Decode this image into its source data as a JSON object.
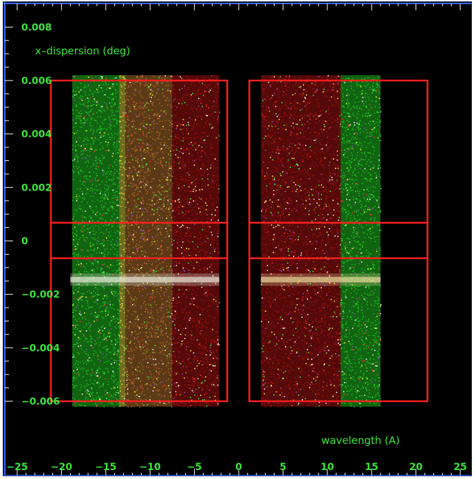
{
  "chart_data": {
    "type": "scatter",
    "ylabel": "x–dispersion (deg)",
    "xlabel": "wavelength (A)",
    "xlim": [
      -25,
      25
    ],
    "ylim": [
      -0.0062,
      0.0089
    ],
    "x_ticks": [
      {
        "value": -25,
        "label": "−25"
      },
      {
        "value": -20,
        "label": "−20"
      },
      {
        "value": -15,
        "label": "−15"
      },
      {
        "value": -10,
        "label": "−10"
      },
      {
        "value": -5,
        "label": "−5"
      },
      {
        "value": 0,
        "label": "0"
      },
      {
        "value": 5,
        "label": "5"
      },
      {
        "value": 10,
        "label": "10"
      },
      {
        "value": 15,
        "label": "15"
      },
      {
        "value": 20,
        "label": "20"
      },
      {
        "value": 25,
        "label": "25"
      }
    ],
    "y_ticks": [
      {
        "value": 0.008,
        "label": "0.008"
      },
      {
        "value": 0.006,
        "label": "0.006"
      },
      {
        "value": 0.004,
        "label": "0.004"
      },
      {
        "value": 0.002,
        "label": "0.002"
      },
      {
        "value": 0,
        "label": "0"
      },
      {
        "value": -0.002,
        "label": "−0.002"
      },
      {
        "value": -0.004,
        "label": "−0.004"
      },
      {
        "value": -0.006,
        "label": "−0.006"
      }
    ],
    "detector_boxes": [
      {
        "x": [
          -21.2,
          -1.3
        ],
        "y": [
          -0.006,
          0.006
        ]
      },
      {
        "x": [
          1.2,
          21.3
        ],
        "y": [
          -0.006,
          0.006
        ]
      }
    ],
    "horizontal_box_lines": [
      0.00068,
      -0.00065
    ],
    "scatter_bands": [
      {
        "x": [
          -18.8,
          -13.5
        ],
        "y": [
          -0.0062,
          0.0062
        ],
        "color": "#1fb81f"
      },
      {
        "x": [
          -13.5,
          -12.8
        ],
        "y": [
          -0.0062,
          0.0062
        ],
        "color": "#c6c63a"
      },
      {
        "x": [
          -12.8,
          -7.5
        ],
        "y": [
          -0.0062,
          0.0062
        ],
        "color": "#a86a2a"
      },
      {
        "x": [
          -7.5,
          -2.2
        ],
        "y": [
          -0.0062,
          0.0062
        ],
        "color": "#9a1010"
      },
      {
        "x": [
          2.5,
          11.5
        ],
        "y": [
          -0.0062,
          0.0062
        ],
        "color": "#9a1010"
      },
      {
        "x": [
          11.5,
          16.0
        ],
        "y": [
          -0.0062,
          0.0062
        ],
        "color": "#1fb81f"
      }
    ],
    "bright_streaks": [
      {
        "x": [
          -19.0,
          -2.2
        ],
        "y": -0.00145,
        "color": "#f0f0e0"
      },
      {
        "x": [
          2.5,
          16.0
        ],
        "y": -0.00145,
        "color": "#f0e0a0"
      }
    ],
    "colors": {
      "background": "#000000",
      "axis": "#3a6aff",
      "tick_label": "#39e639",
      "box": "#ff2020",
      "green": "#1fb81f",
      "red": "#9a1010",
      "yellow": "#c6c63a"
    }
  }
}
